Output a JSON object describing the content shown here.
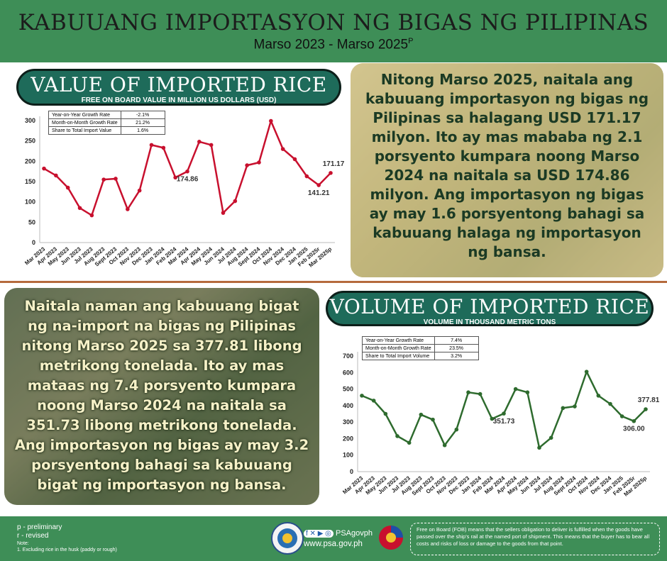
{
  "header": {
    "title": "KABUUANG IMPORTASYON NG BIGAS NG PILIPINAS",
    "subtitle": "Marso 2023 - Marso 2025",
    "subtitle_sup": "P"
  },
  "value_panel": {
    "title": "VALUE OF IMPORTED RICE",
    "subtitle": "FREE ON BOARD VALUE IN MILLION US DOLLARS (USD)",
    "stats": [
      {
        "label": "Year-on-Year Growth Rate",
        "value": "-2.1%"
      },
      {
        "label": "Month-on-Month Growth Rate",
        "value": "21.2%"
      },
      {
        "label": "Share to Total Import Value",
        "value": "1.6%"
      }
    ],
    "description": "Nitong Marso 2025, naitala ang kabuuang importasyon ng bigas ng Pilipinas sa halagang USD 171.17 milyon. Ito ay mas mababa ng 2.1 porsyento kumpara noong Marso 2024 na naitala sa USD 174.86 milyon. Ang importasyon ng bigas ay may 1.6 porsyentong bahagi sa kabuuang halaga ng importasyon ng bansa."
  },
  "volume_panel": {
    "title": "VOLUME OF IMPORTED RICE",
    "subtitle": "VOLUME IN THOUSAND METRIC TONS",
    "stats": [
      {
        "label": "Year-on-Year Growth Rate",
        "value": "7.4%"
      },
      {
        "label": "Month-on-Month Growth Rate",
        "value": "23.5%"
      },
      {
        "label": "Share to Total Import Volume",
        "value": "3.2%"
      }
    ],
    "description": "Naitala naman ang kabuuang bigat ng na-import na bigas ng Pilipinas nitong Marso 2025 sa 377.81 libong metrikong tonelada. Ito ay mas mataas ng 7.4 porsyento kumpara noong Marso 2024 na naitala sa 351.73 libong metrikong tonelada. Ang importasyon ng bigas ay may 3.2 porsyentong bahagi sa kabuuang bigat ng importasyon ng bansa."
  },
  "chart_data": [
    {
      "type": "line",
      "categories": [
        "Mar 2023",
        "Apr 2023",
        "May 2023",
        "Jun 2023",
        "Jul 2023",
        "Aug 2023",
        "Sept 2023",
        "Oct 2023",
        "Nov 2023",
        "Dec 2023",
        "Jan 2024",
        "Feb 2024",
        "Mar 2024",
        "Apr 2024",
        "May 2024",
        "Jun 2024",
        "Jul 2024",
        "Aug 2024",
        "Sept 2024",
        "Oct 2024",
        "Nov 2024",
        "Dec 2024",
        "Jan 2025",
        "Feb 2025r",
        "Mar 2025p"
      ],
      "values": [
        182,
        165,
        135,
        85,
        67,
        155,
        157,
        82,
        128,
        240,
        233,
        160,
        174.86,
        248,
        240,
        73,
        102,
        190,
        197,
        299,
        230,
        205,
        163,
        141.21,
        171.17
      ],
      "ylim": [
        0,
        300
      ],
      "yticks": [
        0,
        50,
        100,
        150,
        200,
        250,
        300
      ],
      "data_labels": [
        {
          "index": 12,
          "text": "174.86"
        },
        {
          "index": 23,
          "text": "141.21"
        },
        {
          "index": 24,
          "text": "171.17"
        }
      ],
      "grid": false,
      "color": "#c8102e"
    },
    {
      "type": "line",
      "categories": [
        "Mar 2023",
        "Apr 2023",
        "May 2023",
        "Jun 2023",
        "Jul 2023",
        "Aug 2023",
        "Sept 2023",
        "Oct 2023",
        "Nov 2023",
        "Dec 2023",
        "Jan 2024",
        "Feb 2024",
        "Mar 2024",
        "Apr 2024",
        "May 2024",
        "Jun 2024",
        "Jul 2024",
        "Aug 2024",
        "Sept 2024",
        "Oct 2024",
        "Nov 2024",
        "Dec 2024",
        "Jan 2025",
        "Feb 2025r",
        "Mar 2025p"
      ],
      "values": [
        460,
        430,
        350,
        215,
        175,
        345,
        315,
        160,
        255,
        480,
        470,
        320,
        351.73,
        500,
        480,
        145,
        205,
        385,
        395,
        605,
        460,
        410,
        335,
        306.0,
        377.81
      ],
      "ylim": [
        0,
        700
      ],
      "yticks": [
        0,
        100,
        200,
        300,
        400,
        500,
        600,
        700
      ],
      "data_labels": [
        {
          "index": 12,
          "text": "351.73"
        },
        {
          "index": 23,
          "text": "306.00"
        },
        {
          "index": 24,
          "text": "377.81"
        }
      ],
      "grid": false,
      "color": "#2e6b2e"
    }
  ],
  "footer": {
    "note_p": "p - preliminary",
    "note_r": "r - revised",
    "note_label": "Note:",
    "note_1": "1. Excluding rice in the husk (paddy or rough)",
    "social": "PSAgovph",
    "website": "www.psa.gov.ph",
    "fob_note": "Free on Board (FOB) means that the sellers obligation to deliver is fulfilled when the goods have passed over the ship's rail at the named port of shipment. This means that the buyer has to bear all costs and risks of loss or damage to the goods from that point."
  }
}
